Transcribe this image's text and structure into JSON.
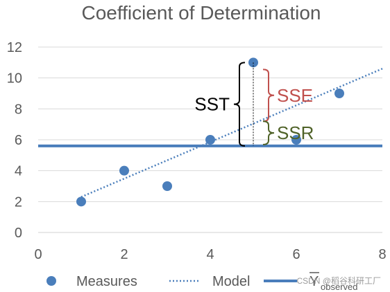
{
  "chart_data": {
    "type": "scatter",
    "title": "Coefficient of Determination",
    "xlim": [
      0,
      8
    ],
    "ylim": [
      0,
      12
    ],
    "x_ticks": [
      "0",
      "2",
      "4",
      "6",
      "8"
    ],
    "y_ticks": [
      "0",
      "2",
      "4",
      "6",
      "8",
      "10",
      "12"
    ],
    "grid": "horizontal",
    "legend_position": "bottom",
    "series": [
      {
        "name": "Measures",
        "kind": "scatter",
        "color": "#4a7ebb",
        "points": [
          [
            1,
            2
          ],
          [
            2,
            4
          ],
          [
            3,
            3
          ],
          [
            4,
            6
          ],
          [
            5,
            11
          ],
          [
            6,
            6
          ],
          [
            7,
            9
          ]
        ]
      },
      {
        "name": "Model",
        "kind": "dotted-line",
        "color": "#4a7ebb",
        "points": [
          [
            1,
            2.3
          ],
          [
            8,
            10.6
          ]
        ]
      },
      {
        "name": "observed",
        "kind": "solid-line",
        "color": "#4a7ebb",
        "points": [
          [
            0,
            5.6
          ],
          [
            8,
            5.6
          ]
        ]
      }
    ],
    "annotations": [
      {
        "label": "SST",
        "color": "#000000",
        "from": 5.6,
        "to": 11,
        "x": 5
      },
      {
        "label": "SSE",
        "color": "#c0504d",
        "from": 7.2,
        "to": 11,
        "x": 5
      },
      {
        "label": "SSR",
        "color": "#4f6228",
        "from": 5.6,
        "to": 7.2,
        "x": 5
      }
    ]
  },
  "legend": {
    "measures": "Measures",
    "model": "Model",
    "mean_symbol": "Y",
    "mean_subscript": "observed"
  },
  "watermark": "CSDN @稻谷科研工厂"
}
